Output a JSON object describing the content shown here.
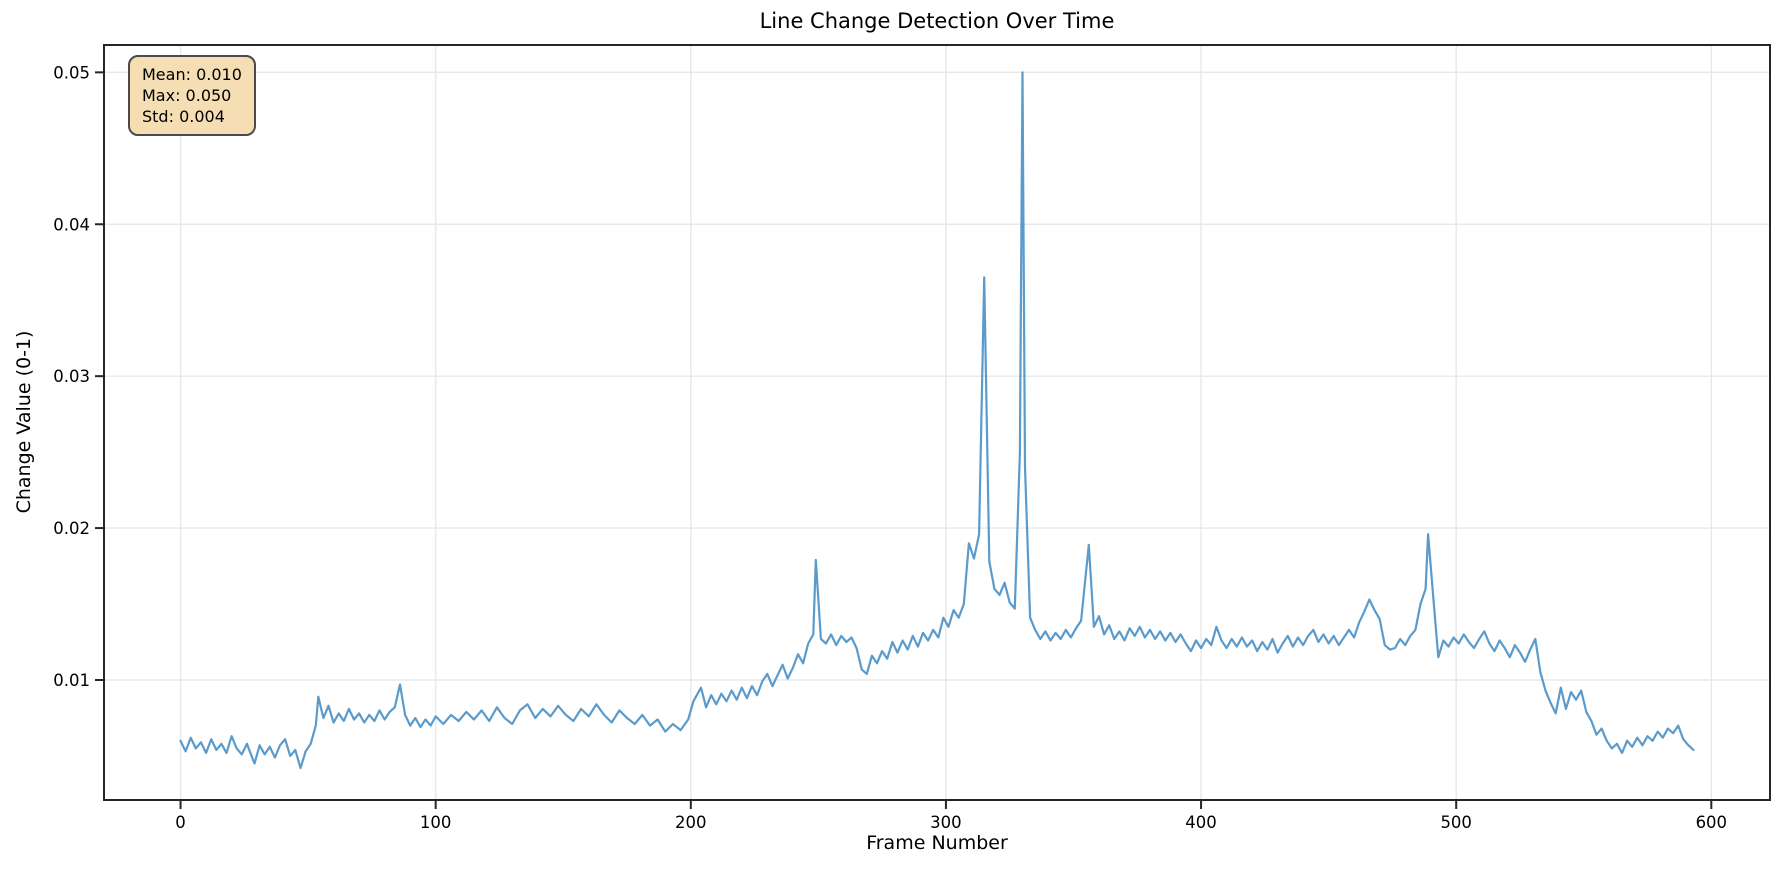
{
  "figure": {
    "title": "Line Change Detection Over Time",
    "stats_box": {
      "mean": "Mean: 0.010",
      "max": "Max: 0.050",
      "std": "Std: 0.004",
      "background": "#f5deb3",
      "border": "#4a4a4a"
    },
    "colors": {
      "line": "#5a9bcc",
      "grid": "#e8e8e8",
      "spine": "#262626",
      "text": "#000000",
      "background": "#ffffff"
    }
  },
  "chart_data": {
    "type": "line",
    "title": "Line Change Detection Over Time",
    "xlabel": "Frame Number",
    "ylabel": "Change Value (0-1)",
    "x_ticks": [
      0,
      100,
      200,
      300,
      400,
      500,
      600
    ],
    "y_ticks": [
      0.01,
      0.02,
      0.03,
      0.04,
      0.05
    ],
    "xlim": [
      -30,
      623
    ],
    "ylim": [
      0.0021,
      0.0518
    ],
    "grid": true,
    "stats": {
      "mean": 0.01,
      "max": 0.05,
      "std": 0.004
    },
    "series": [
      {
        "name": "change_value",
        "color": "#5a9bcc",
        "points": [
          [
            0,
            0.006
          ],
          [
            2,
            0.0053
          ],
          [
            4,
            0.0062
          ],
          [
            6,
            0.0055
          ],
          [
            8,
            0.0059
          ],
          [
            10,
            0.0052
          ],
          [
            12,
            0.0061
          ],
          [
            14,
            0.0054
          ],
          [
            16,
            0.0058
          ],
          [
            18,
            0.0052
          ],
          [
            20,
            0.0063
          ],
          [
            22,
            0.0055
          ],
          [
            24,
            0.0051
          ],
          [
            26,
            0.0058
          ],
          [
            29,
            0.0045
          ],
          [
            31,
            0.0057
          ],
          [
            33,
            0.0051
          ],
          [
            35,
            0.0056
          ],
          [
            37,
            0.0049
          ],
          [
            39,
            0.0057
          ],
          [
            41,
            0.0061
          ],
          [
            43,
            0.005
          ],
          [
            45,
            0.0054
          ],
          [
            47,
            0.0042
          ],
          [
            49,
            0.0053
          ],
          [
            51,
            0.0058
          ],
          [
            53,
            0.007
          ],
          [
            54,
            0.0089
          ],
          [
            56,
            0.0075
          ],
          [
            58,
            0.0083
          ],
          [
            60,
            0.0072
          ],
          [
            62,
            0.0078
          ],
          [
            64,
            0.0073
          ],
          [
            66,
            0.0081
          ],
          [
            68,
            0.0074
          ],
          [
            70,
            0.0078
          ],
          [
            72,
            0.0072
          ],
          [
            74,
            0.0077
          ],
          [
            76,
            0.0073
          ],
          [
            78,
            0.008
          ],
          [
            80,
            0.0074
          ],
          [
            82,
            0.0079
          ],
          [
            84,
            0.0082
          ],
          [
            86,
            0.0097
          ],
          [
            88,
            0.0077
          ],
          [
            90,
            0.007
          ],
          [
            92,
            0.0075
          ],
          [
            94,
            0.0069
          ],
          [
            96,
            0.0074
          ],
          [
            98,
            0.007
          ],
          [
            100,
            0.0076
          ],
          [
            103,
            0.0071
          ],
          [
            106,
            0.0077
          ],
          [
            109,
            0.0073
          ],
          [
            112,
            0.0079
          ],
          [
            115,
            0.0074
          ],
          [
            118,
            0.008
          ],
          [
            121,
            0.0073
          ],
          [
            124,
            0.0082
          ],
          [
            127,
            0.0075
          ],
          [
            130,
            0.0071
          ],
          [
            133,
            0.008
          ],
          [
            136,
            0.0084
          ],
          [
            139,
            0.0075
          ],
          [
            142,
            0.0081
          ],
          [
            145,
            0.0076
          ],
          [
            148,
            0.0083
          ],
          [
            151,
            0.0077
          ],
          [
            154,
            0.0073
          ],
          [
            157,
            0.0081
          ],
          [
            160,
            0.0076
          ],
          [
            163,
            0.0084
          ],
          [
            166,
            0.0077
          ],
          [
            169,
            0.0072
          ],
          [
            172,
            0.008
          ],
          [
            175,
            0.0075
          ],
          [
            178,
            0.0071
          ],
          [
            181,
            0.0077
          ],
          [
            184,
            0.007
          ],
          [
            187,
            0.0074
          ],
          [
            190,
            0.0066
          ],
          [
            193,
            0.0071
          ],
          [
            196,
            0.0067
          ],
          [
            199,
            0.0074
          ],
          [
            201,
            0.0086
          ],
          [
            204,
            0.0095
          ],
          [
            206,
            0.0082
          ],
          [
            208,
            0.009
          ],
          [
            210,
            0.0084
          ],
          [
            212,
            0.0091
          ],
          [
            214,
            0.0086
          ],
          [
            216,
            0.0093
          ],
          [
            218,
            0.0087
          ],
          [
            220,
            0.0095
          ],
          [
            222,
            0.0088
          ],
          [
            224,
            0.0096
          ],
          [
            226,
            0.009
          ],
          [
            228,
            0.0099
          ],
          [
            230,
            0.0104
          ],
          [
            232,
            0.0096
          ],
          [
            234,
            0.0103
          ],
          [
            236,
            0.011
          ],
          [
            238,
            0.0101
          ],
          [
            240,
            0.0108
          ],
          [
            242,
            0.0117
          ],
          [
            244,
            0.0111
          ],
          [
            246,
            0.0124
          ],
          [
            248,
            0.013
          ],
          [
            249,
            0.0179
          ],
          [
            251,
            0.0127
          ],
          [
            253,
            0.0124
          ],
          [
            255,
            0.013
          ],
          [
            257,
            0.0123
          ],
          [
            259,
            0.0129
          ],
          [
            261,
            0.0125
          ],
          [
            263,
            0.0128
          ],
          [
            265,
            0.0121
          ],
          [
            267,
            0.0107
          ],
          [
            269,
            0.0104
          ],
          [
            271,
            0.0116
          ],
          [
            273,
            0.0111
          ],
          [
            275,
            0.0119
          ],
          [
            277,
            0.0114
          ],
          [
            279,
            0.0125
          ],
          [
            281,
            0.0118
          ],
          [
            283,
            0.0126
          ],
          [
            285,
            0.012
          ],
          [
            287,
            0.0129
          ],
          [
            289,
            0.0122
          ],
          [
            291,
            0.0131
          ],
          [
            293,
            0.0126
          ],
          [
            295,
            0.0133
          ],
          [
            297,
            0.0128
          ],
          [
            299,
            0.0141
          ],
          [
            301,
            0.0135
          ],
          [
            303,
            0.0146
          ],
          [
            305,
            0.0141
          ],
          [
            307,
            0.015
          ],
          [
            309,
            0.019
          ],
          [
            311,
            0.018
          ],
          [
            313,
            0.0196
          ],
          [
            315,
            0.0365
          ],
          [
            317,
            0.0178
          ],
          [
            319,
            0.016
          ],
          [
            321,
            0.0156
          ],
          [
            323,
            0.0164
          ],
          [
            325,
            0.0151
          ],
          [
            327,
            0.0147
          ],
          [
            329,
            0.025
          ],
          [
            330,
            0.05
          ],
          [
            331,
            0.024
          ],
          [
            333,
            0.0141
          ],
          [
            335,
            0.0133
          ],
          [
            337,
            0.0127
          ],
          [
            339,
            0.0132
          ],
          [
            341,
            0.0126
          ],
          [
            343,
            0.0131
          ],
          [
            345,
            0.0127
          ],
          [
            347,
            0.0133
          ],
          [
            349,
            0.0128
          ],
          [
            351,
            0.0134
          ],
          [
            353,
            0.0139
          ],
          [
            356,
            0.0189
          ],
          [
            358,
            0.0135
          ],
          [
            360,
            0.0142
          ],
          [
            362,
            0.013
          ],
          [
            364,
            0.0136
          ],
          [
            366,
            0.0127
          ],
          [
            368,
            0.0132
          ],
          [
            370,
            0.0126
          ],
          [
            372,
            0.0134
          ],
          [
            374,
            0.0129
          ],
          [
            376,
            0.0135
          ],
          [
            378,
            0.0128
          ],
          [
            380,
            0.0133
          ],
          [
            382,
            0.0127
          ],
          [
            384,
            0.0132
          ],
          [
            386,
            0.0126
          ],
          [
            388,
            0.0131
          ],
          [
            390,
            0.0125
          ],
          [
            392,
            0.013
          ],
          [
            394,
            0.0124
          ],
          [
            396,
            0.0119
          ],
          [
            398,
            0.0126
          ],
          [
            400,
            0.0121
          ],
          [
            402,
            0.0127
          ],
          [
            404,
            0.0123
          ],
          [
            406,
            0.0135
          ],
          [
            408,
            0.0126
          ],
          [
            410,
            0.0121
          ],
          [
            412,
            0.0127
          ],
          [
            414,
            0.0122
          ],
          [
            416,
            0.0128
          ],
          [
            418,
            0.0122
          ],
          [
            420,
            0.0126
          ],
          [
            422,
            0.0119
          ],
          [
            424,
            0.0125
          ],
          [
            426,
            0.012
          ],
          [
            428,
            0.0127
          ],
          [
            430,
            0.0118
          ],
          [
            432,
            0.0124
          ],
          [
            434,
            0.0129
          ],
          [
            436,
            0.0122
          ],
          [
            438,
            0.0128
          ],
          [
            440,
            0.0123
          ],
          [
            442,
            0.0129
          ],
          [
            444,
            0.0133
          ],
          [
            446,
            0.0125
          ],
          [
            448,
            0.013
          ],
          [
            450,
            0.0124
          ],
          [
            452,
            0.0129
          ],
          [
            454,
            0.0123
          ],
          [
            456,
            0.0128
          ],
          [
            458,
            0.0133
          ],
          [
            460,
            0.0128
          ],
          [
            462,
            0.0138
          ],
          [
            464,
            0.0145
          ],
          [
            466,
            0.0153
          ],
          [
            468,
            0.0146
          ],
          [
            470,
            0.014
          ],
          [
            472,
            0.0123
          ],
          [
            474,
            0.012
          ],
          [
            476,
            0.0121
          ],
          [
            478,
            0.0127
          ],
          [
            480,
            0.0123
          ],
          [
            482,
            0.0129
          ],
          [
            484,
            0.0133
          ],
          [
            486,
            0.015
          ],
          [
            488,
            0.016
          ],
          [
            489,
            0.0196
          ],
          [
            491,
            0.0155
          ],
          [
            493,
            0.0115
          ],
          [
            495,
            0.0126
          ],
          [
            497,
            0.0122
          ],
          [
            499,
            0.0128
          ],
          [
            501,
            0.0124
          ],
          [
            503,
            0.013
          ],
          [
            505,
            0.0125
          ],
          [
            507,
            0.0121
          ],
          [
            509,
            0.0127
          ],
          [
            511,
            0.0132
          ],
          [
            513,
            0.0124
          ],
          [
            515,
            0.0119
          ],
          [
            517,
            0.0126
          ],
          [
            519,
            0.0121
          ],
          [
            521,
            0.0115
          ],
          [
            523,
            0.0123
          ],
          [
            525,
            0.0118
          ],
          [
            527,
            0.0112
          ],
          [
            529,
            0.012
          ],
          [
            531,
            0.0127
          ],
          [
            533,
            0.0105
          ],
          [
            535,
            0.0093
          ],
          [
            537,
            0.0085
          ],
          [
            539,
            0.0078
          ],
          [
            541,
            0.0095
          ],
          [
            543,
            0.0081
          ],
          [
            545,
            0.0092
          ],
          [
            547,
            0.0087
          ],
          [
            549,
            0.0093
          ],
          [
            551,
            0.0079
          ],
          [
            553,
            0.0073
          ],
          [
            555,
            0.0064
          ],
          [
            557,
            0.0068
          ],
          [
            559,
            0.006
          ],
          [
            561,
            0.0055
          ],
          [
            563,
            0.0058
          ],
          [
            565,
            0.0052
          ],
          [
            567,
            0.006
          ],
          [
            569,
            0.0056
          ],
          [
            571,
            0.0062
          ],
          [
            573,
            0.0057
          ],
          [
            575,
            0.0063
          ],
          [
            577,
            0.006
          ],
          [
            579,
            0.0066
          ],
          [
            581,
            0.0062
          ],
          [
            583,
            0.0068
          ],
          [
            585,
            0.0065
          ],
          [
            587,
            0.007
          ],
          [
            589,
            0.0061
          ],
          [
            591,
            0.0057
          ],
          [
            593,
            0.0054
          ]
        ]
      }
    ]
  }
}
